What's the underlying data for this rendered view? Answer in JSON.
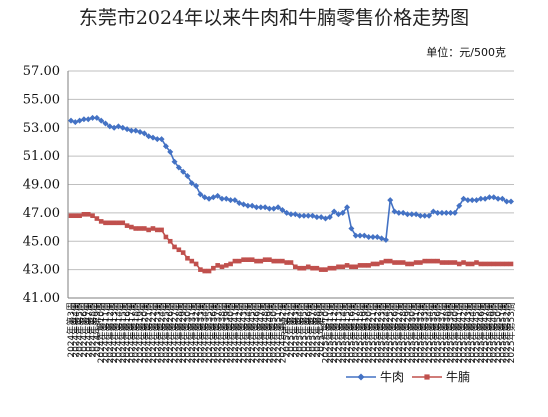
{
  "chart_data": {
    "type": "line",
    "title": "东莞市2024年以来牛肉和牛腩零售价格走势图",
    "unit_label": "单位：元/500克",
    "ylim": [
      41,
      57
    ],
    "yticks": [
      "41.00",
      "43.00",
      "45.00",
      "47.00",
      "49.00",
      "51.00",
      "53.00",
      "55.00",
      "57.00"
    ],
    "grid": true,
    "legend_position": "bottom-right",
    "x": [
      "2024年第3周",
      "2024年第4周",
      "2024年第5周",
      "2024年第6周",
      "2024年第7周",
      "2024年第8周",
      "2024年第9周",
      "2024年第10周",
      "2024年第11周",
      "2024年第12周",
      "2024年第13周",
      "2024年第14周",
      "2024年第15周",
      "2024年第16周",
      "2024年第17周",
      "2024年第18周",
      "2024年第19周",
      "2024年第20周",
      "2024年第21周",
      "2024年第22周",
      "2024年第23周",
      "2024年第24周",
      "2024年第25周",
      "2024年第26周",
      "2024年第27周",
      "2024年第28周",
      "2024年第29周",
      "2024年第30周",
      "2024年第31周",
      "2024年第32周",
      "2024年第33周",
      "2024年第34周",
      "2024年第35周",
      "2024年第36周",
      "2024年第37周",
      "2024年第38周",
      "2024年第39周",
      "2024年第40周",
      "2024年第41周",
      "2024年第42周",
      "2024年第43周",
      "2024年第44周",
      "2024年第45周",
      "2024年第46周",
      "2024年第47周",
      "2024年第48周",
      "2024年第49周",
      "2024年第50周",
      "2024年第51周",
      "2024年第52周",
      "2025年第1周",
      "2025年第2周",
      "2025年第3周",
      "2025年第4周",
      "2025年第5周",
      "2025年第6周",
      "2025年第7周",
      "2025年第8周",
      "2025年第9周",
      "2025年第10周",
      "2025年第11周",
      "2025年第12周",
      "2025年第13周",
      "2025年第14周",
      "2025年第15周",
      "2025年第16周",
      "2025年第17周",
      "2025年第18周",
      "2025年第19周",
      "2025年第20周",
      "2025年第21周",
      "2025年第22周",
      "2025年第23周",
      "2025年第24周",
      "2025年第25周",
      "2025年第26周",
      "2025年第27周",
      "2025年第28周",
      "2025年第29周",
      "2025年第30周",
      "2025年第31周",
      "2025年第32周",
      "2025年第33周",
      "2025年第34周",
      "2025年第35周",
      "2025年第36周",
      "2025年第37周",
      "2025年第38周",
      "2025年第39周",
      "2025年第40周",
      "2025年第41周",
      "2025年第42周",
      "2025年第43周",
      "2025年第44周",
      "2025年第45周",
      "2025年第46周",
      "2025年第47周",
      "2025年第48周",
      "2025年第49周",
      "2025年第50周",
      "2025年第51周",
      "2025年第52周",
      "2025年第53周"
    ],
    "series": [
      {
        "name": "牛肉",
        "color": "#4472C4",
        "marker": "diamond",
        "values": [
          53.5,
          53.4,
          53.5,
          53.6,
          53.6,
          53.7,
          53.7,
          53.5,
          53.3,
          53.1,
          53.0,
          53.1,
          53.0,
          52.9,
          52.8,
          52.8,
          52.7,
          52.6,
          52.4,
          52.3,
          52.2,
          52.2,
          51.7,
          51.3,
          50.6,
          50.2,
          49.9,
          49.6,
          49.1,
          48.9,
          48.3,
          48.1,
          48.0,
          48.1,
          48.2,
          48.0,
          48.0,
          47.9,
          47.9,
          47.7,
          47.6,
          47.5,
          47.5,
          47.4,
          47.4,
          47.4,
          47.3,
          47.3,
          47.4,
          47.2,
          47.0,
          46.9,
          46.9,
          46.8,
          46.8,
          46.8,
          46.8,
          46.7,
          46.7,
          46.6,
          46.7,
          47.1,
          46.9,
          47.0,
          47.4,
          45.9,
          45.4,
          45.4,
          45.4,
          45.3,
          45.3,
          45.3,
          45.2,
          45.1,
          47.9,
          47.1,
          47.0,
          47.0,
          46.9,
          46.9,
          46.9,
          46.8,
          46.8,
          46.8,
          47.1,
          47.0,
          47.0,
          47.0,
          47.0,
          47.0,
          47.5,
          48.0,
          47.9,
          47.9,
          47.9,
          48.0,
          48.0,
          48.1,
          48.1,
          48.0,
          48.0,
          47.8,
          47.8
        ]
      },
      {
        "name": "牛腩",
        "color": "#C0504D",
        "marker": "square",
        "values": [
          46.8,
          46.8,
          46.8,
          46.9,
          46.9,
          46.8,
          46.6,
          46.4,
          46.3,
          46.3,
          46.3,
          46.3,
          46.3,
          46.1,
          46.0,
          45.9,
          45.9,
          45.9,
          45.8,
          45.9,
          45.8,
          45.8,
          45.3,
          45.0,
          44.6,
          44.4,
          44.2,
          43.8,
          43.6,
          43.4,
          43.0,
          42.9,
          42.9,
          43.1,
          43.3,
          43.2,
          43.3,
          43.4,
          43.6,
          43.6,
          43.7,
          43.7,
          43.7,
          43.6,
          43.6,
          43.7,
          43.7,
          43.6,
          43.6,
          43.6,
          43.5,
          43.5,
          43.2,
          43.1,
          43.1,
          43.2,
          43.1,
          43.1,
          43.0,
          43.0,
          43.1,
          43.1,
          43.2,
          43.2,
          43.3,
          43.2,
          43.2,
          43.3,
          43.3,
          43.3,
          43.4,
          43.4,
          43.5,
          43.6,
          43.6,
          43.5,
          43.5,
          43.5,
          43.4,
          43.4,
          43.5,
          43.5,
          43.6,
          43.6,
          43.6,
          43.6,
          43.5,
          43.5,
          43.5,
          43.5,
          43.4,
          43.5,
          43.4,
          43.4,
          43.5,
          43.4,
          43.4,
          43.4,
          43.4,
          43.4,
          43.4,
          43.4,
          43.4
        ]
      }
    ]
  }
}
